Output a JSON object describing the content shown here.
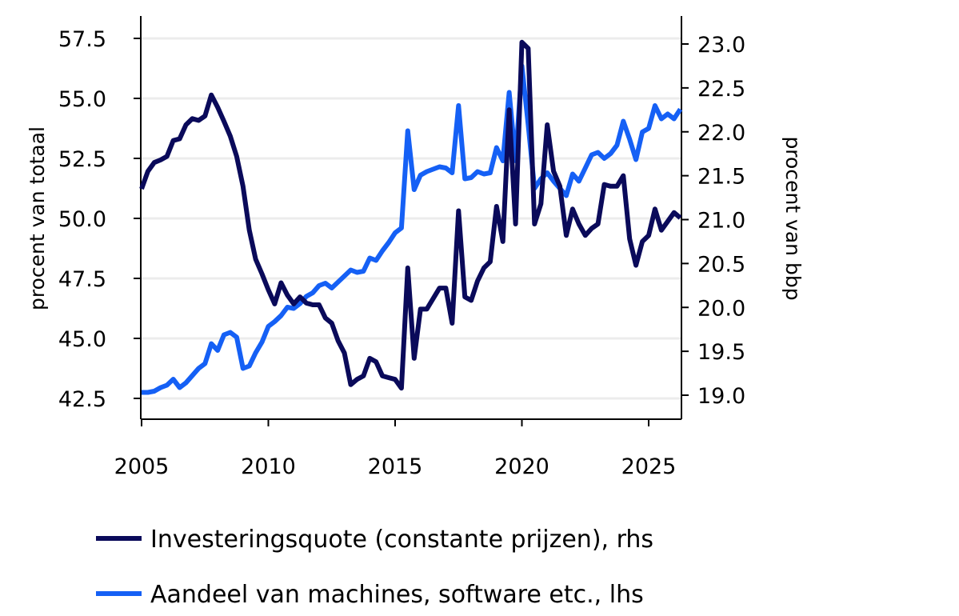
{
  "chart_data": {
    "type": "line",
    "x_axis": {
      "range": [
        2005,
        2026.3
      ],
      "ticks": [
        2005,
        2010,
        2015,
        2020,
        2025
      ],
      "tick_labels": [
        "2005",
        "2010",
        "2015",
        "2020",
        "2025"
      ]
    },
    "y_left": {
      "label": "procent van totaal",
      "range": [
        41.8,
        58.2
      ],
      "ticks": [
        42.5,
        45,
        47.5,
        50,
        52.5,
        55,
        57.5
      ],
      "tick_labels": [
        "42.5",
        "45.0",
        "47.5",
        "50.0",
        "52.5",
        "55.0",
        "57.5"
      ]
    },
    "y_right": {
      "label": "procent van bbp",
      "range": [
        18.7,
        23.2
      ],
      "ticks": [
        19,
        19.5,
        20,
        20.5,
        21,
        21.5,
        22,
        22.5,
        23
      ],
      "tick_labels": [
        "19.0",
        "19.5",
        "20.0",
        "20.5",
        "21.0",
        "21.5",
        "22.0",
        "22.5",
        "23.0"
      ]
    },
    "grid": "horizontal",
    "legend_position": "bottom",
    "series": [
      {
        "name": "Investeringsquote (constante prijzen), rhs",
        "axis": "right",
        "color": "#0a0a5a",
        "points": [
          [
            2005.0,
            21.35
          ],
          [
            2005.25,
            21.55
          ],
          [
            2005.5,
            21.65
          ],
          [
            2005.75,
            21.68
          ],
          [
            2006.0,
            21.72
          ],
          [
            2006.25,
            21.9
          ],
          [
            2006.5,
            21.92
          ],
          [
            2006.75,
            22.08
          ],
          [
            2007.0,
            22.15
          ],
          [
            2007.25,
            22.13
          ],
          [
            2007.5,
            22.18
          ],
          [
            2007.75,
            22.42
          ],
          [
            2008.0,
            22.28
          ],
          [
            2008.25,
            22.12
          ],
          [
            2008.5,
            21.95
          ],
          [
            2008.75,
            21.72
          ],
          [
            2009.0,
            21.38
          ],
          [
            2009.25,
            20.88
          ],
          [
            2009.5,
            20.55
          ],
          [
            2009.75,
            20.38
          ],
          [
            2010.0,
            20.2
          ],
          [
            2010.25,
            20.04
          ],
          [
            2010.5,
            20.28
          ],
          [
            2010.75,
            20.14
          ],
          [
            2011.0,
            20.04
          ],
          [
            2011.25,
            20.12
          ],
          [
            2011.5,
            20.05
          ],
          [
            2011.75,
            20.03
          ],
          [
            2012.0,
            20.03
          ],
          [
            2012.25,
            19.88
          ],
          [
            2012.5,
            19.82
          ],
          [
            2012.75,
            19.62
          ],
          [
            2013.0,
            19.48
          ],
          [
            2013.25,
            19.12
          ],
          [
            2013.5,
            19.18
          ],
          [
            2013.75,
            19.22
          ],
          [
            2014.0,
            19.42
          ],
          [
            2014.25,
            19.38
          ],
          [
            2014.5,
            19.22
          ],
          [
            2014.75,
            19.2
          ],
          [
            2015.0,
            19.18
          ],
          [
            2015.25,
            19.08
          ],
          [
            2015.5,
            20.45
          ],
          [
            2015.75,
            19.42
          ],
          [
            2016.0,
            19.98
          ],
          [
            2016.25,
            19.98
          ],
          [
            2016.5,
            20.1
          ],
          [
            2016.75,
            20.22
          ],
          [
            2017.0,
            20.22
          ],
          [
            2017.25,
            19.82
          ],
          [
            2017.5,
            21.1
          ],
          [
            2017.75,
            20.12
          ],
          [
            2018.0,
            20.08
          ],
          [
            2018.25,
            20.3
          ],
          [
            2018.5,
            20.45
          ],
          [
            2018.75,
            20.52
          ],
          [
            2019.0,
            21.15
          ],
          [
            2019.25,
            20.75
          ],
          [
            2019.5,
            22.25
          ],
          [
            2019.75,
            20.95
          ],
          [
            2020.0,
            23.02
          ],
          [
            2020.25,
            22.95
          ],
          [
            2020.5,
            20.95
          ],
          [
            2020.75,
            21.18
          ],
          [
            2021.0,
            22.08
          ],
          [
            2021.25,
            21.55
          ],
          [
            2021.5,
            21.38
          ],
          [
            2021.75,
            20.82
          ],
          [
            2022.0,
            21.12
          ],
          [
            2022.25,
            20.95
          ],
          [
            2022.5,
            20.82
          ],
          [
            2022.75,
            20.9
          ],
          [
            2023.0,
            20.95
          ],
          [
            2023.25,
            21.4
          ],
          [
            2023.5,
            21.38
          ],
          [
            2023.75,
            21.38
          ],
          [
            2024.0,
            21.5
          ],
          [
            2024.25,
            20.78
          ],
          [
            2024.5,
            20.48
          ],
          [
            2024.75,
            20.75
          ],
          [
            2025.0,
            20.82
          ],
          [
            2025.25,
            21.12
          ],
          [
            2025.5,
            20.88
          ],
          [
            2025.75,
            20.98
          ],
          [
            2026.0,
            21.08
          ],
          [
            2026.25,
            21.02
          ]
        ]
      },
      {
        "name": "Aandeel van machines, software etc., lhs",
        "axis": "left",
        "color": "#1560f5",
        "points": [
          [
            2005.0,
            42.75
          ],
          [
            2005.25,
            42.75
          ],
          [
            2005.5,
            42.8
          ],
          [
            2005.75,
            42.95
          ],
          [
            2006.0,
            43.05
          ],
          [
            2006.25,
            43.3
          ],
          [
            2006.5,
            42.95
          ],
          [
            2006.75,
            43.15
          ],
          [
            2007.0,
            43.45
          ],
          [
            2007.25,
            43.75
          ],
          [
            2007.5,
            43.95
          ],
          [
            2007.75,
            44.78
          ],
          [
            2008.0,
            44.5
          ],
          [
            2008.25,
            45.15
          ],
          [
            2008.5,
            45.25
          ],
          [
            2008.75,
            45.05
          ],
          [
            2009.0,
            43.75
          ],
          [
            2009.25,
            43.85
          ],
          [
            2009.5,
            44.4
          ],
          [
            2009.75,
            44.85
          ],
          [
            2010.0,
            45.5
          ],
          [
            2010.25,
            45.7
          ],
          [
            2010.5,
            45.95
          ],
          [
            2010.75,
            46.3
          ],
          [
            2011.0,
            46.25
          ],
          [
            2011.25,
            46.45
          ],
          [
            2011.5,
            46.75
          ],
          [
            2011.75,
            46.9
          ],
          [
            2012.0,
            47.2
          ],
          [
            2012.25,
            47.3
          ],
          [
            2012.5,
            47.1
          ],
          [
            2012.75,
            47.35
          ],
          [
            2013.0,
            47.6
          ],
          [
            2013.25,
            47.85
          ],
          [
            2013.5,
            47.75
          ],
          [
            2013.75,
            47.8
          ],
          [
            2014.0,
            48.35
          ],
          [
            2014.25,
            48.25
          ],
          [
            2014.5,
            48.65
          ],
          [
            2014.75,
            49.0
          ],
          [
            2015.0,
            49.4
          ],
          [
            2015.25,
            49.6
          ],
          [
            2015.5,
            53.65
          ],
          [
            2015.75,
            51.2
          ],
          [
            2016.0,
            51.8
          ],
          [
            2016.25,
            51.95
          ],
          [
            2016.5,
            52.05
          ],
          [
            2016.75,
            52.15
          ],
          [
            2017.0,
            52.1
          ],
          [
            2017.25,
            51.9
          ],
          [
            2017.5,
            54.7
          ],
          [
            2017.75,
            51.65
          ],
          [
            2018.0,
            51.7
          ],
          [
            2018.25,
            51.95
          ],
          [
            2018.5,
            51.85
          ],
          [
            2018.75,
            51.9
          ],
          [
            2019.0,
            52.95
          ],
          [
            2019.25,
            52.4
          ],
          [
            2019.5,
            55.25
          ],
          [
            2019.75,
            52.4
          ],
          [
            2020.0,
            56.35
          ],
          [
            2020.25,
            53.9
          ],
          [
            2020.5,
            51.25
          ],
          [
            2020.75,
            51.65
          ],
          [
            2021.0,
            51.9
          ],
          [
            2021.25,
            51.55
          ],
          [
            2021.5,
            51.25
          ],
          [
            2021.75,
            50.95
          ],
          [
            2022.0,
            51.85
          ],
          [
            2022.25,
            51.55
          ],
          [
            2022.5,
            52.1
          ],
          [
            2022.75,
            52.65
          ],
          [
            2023.0,
            52.75
          ],
          [
            2023.25,
            52.5
          ],
          [
            2023.5,
            52.7
          ],
          [
            2023.75,
            53.05
          ],
          [
            2024.0,
            54.05
          ],
          [
            2024.25,
            53.3
          ],
          [
            2024.5,
            52.45
          ],
          [
            2024.75,
            53.6
          ],
          [
            2025.0,
            53.75
          ],
          [
            2025.25,
            54.7
          ],
          [
            2025.5,
            54.15
          ],
          [
            2025.75,
            54.35
          ],
          [
            2026.0,
            54.15
          ],
          [
            2026.25,
            54.55
          ]
        ]
      }
    ],
    "legend": [
      "Investeringsquote (constante prijzen), rhs",
      "Aandeel van machines, software etc., lhs"
    ]
  }
}
